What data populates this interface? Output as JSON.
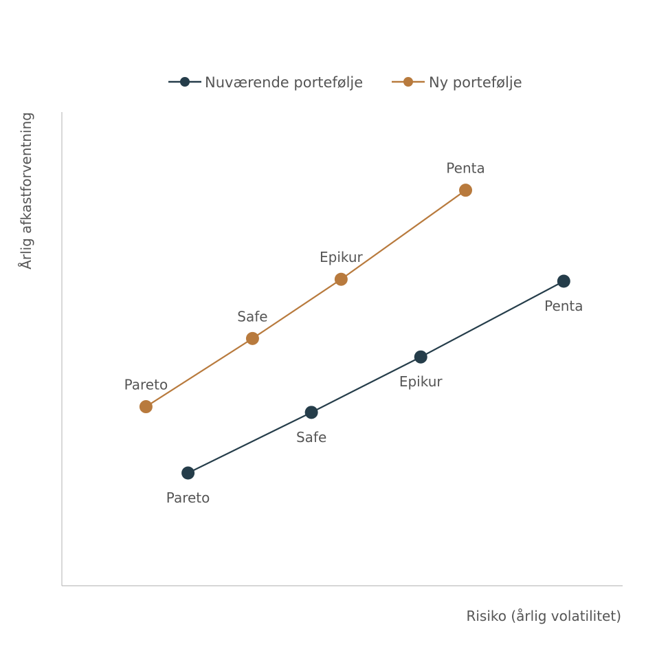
{
  "chart_data": {
    "type": "line",
    "title": "",
    "xlabel": "Risiko (årlig volatilitet)",
    "ylabel": "Årlig afkastforventning",
    "xlim": [
      0,
      100
    ],
    "ylim": [
      0,
      100
    ],
    "grid": false,
    "legend_position": "top-center",
    "series": [
      {
        "name": "Nuværende portefølje",
        "color": "#253d4a",
        "label_side": "below",
        "points": [
          {
            "label": "Pareto",
            "x": 22.5,
            "y": 23.8
          },
          {
            "label": "Safe",
            "x": 44.5,
            "y": 36.6
          },
          {
            "label": "Epikur",
            "x": 64.0,
            "y": 48.3
          },
          {
            "label": "Penta",
            "x": 89.5,
            "y": 64.3
          }
        ]
      },
      {
        "name": "Ny portefølje",
        "color": "#b87a3d",
        "label_side": "above",
        "points": [
          {
            "label": "Pareto",
            "x": 15.0,
            "y": 37.8
          },
          {
            "label": "Safe",
            "x": 34.0,
            "y": 52.2
          },
          {
            "label": "Epikur",
            "x": 49.8,
            "y": 64.7
          },
          {
            "label": "Penta",
            "x": 72.0,
            "y": 83.5
          }
        ]
      }
    ]
  }
}
